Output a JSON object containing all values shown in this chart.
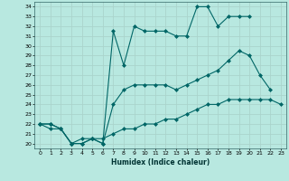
{
  "bg_color": "#b8e8e0",
  "grid_color": "#aad4cc",
  "line_color": "#006666",
  "xlabel": "Humidex (Indice chaleur)",
  "xlim": [
    -0.5,
    23.5
  ],
  "ylim": [
    19.5,
    34.5
  ],
  "yticks": [
    20,
    21,
    22,
    23,
    24,
    25,
    26,
    27,
    28,
    29,
    30,
    31,
    32,
    33,
    34
  ],
  "xticks": [
    0,
    1,
    2,
    3,
    4,
    5,
    6,
    7,
    8,
    9,
    10,
    11,
    12,
    13,
    14,
    15,
    16,
    17,
    18,
    19,
    20,
    21,
    22,
    23
  ],
  "line1_x": [
    0,
    1,
    2,
    3,
    4,
    5,
    6,
    7,
    8,
    9,
    10,
    11,
    12,
    13,
    14,
    15,
    16,
    17,
    18,
    19,
    20
  ],
  "line1_y": [
    22,
    22,
    21.5,
    20,
    20,
    20.5,
    20,
    31.5,
    28,
    32,
    31.5,
    31.5,
    31.5,
    31,
    31,
    34,
    34,
    32,
    33,
    33,
    33
  ],
  "line2_x": [
    0,
    1,
    2,
    3,
    4,
    5,
    6,
    7,
    8,
    9,
    10,
    11,
    12,
    13,
    14,
    15,
    16,
    17,
    18,
    19,
    20,
    21,
    22
  ],
  "line2_y": [
    22,
    22,
    21.5,
    20,
    20,
    20.5,
    20,
    24,
    25.5,
    26,
    26,
    26,
    26,
    25.5,
    26,
    26.5,
    27,
    27.5,
    28.5,
    29.5,
    29,
    27,
    25.5
  ],
  "line3_x": [
    0,
    1,
    2,
    3,
    4,
    5,
    6,
    7,
    8,
    9,
    10,
    11,
    12,
    13,
    14,
    15,
    16,
    17,
    18,
    19,
    20,
    21,
    22,
    23
  ],
  "line3_y": [
    22,
    21.5,
    21.5,
    20,
    20.5,
    20.5,
    20.5,
    21,
    21.5,
    21.5,
    22,
    22,
    22.5,
    22.5,
    23,
    23.5,
    24,
    24,
    24.5,
    24.5,
    24.5,
    24.5,
    24.5,
    24
  ]
}
